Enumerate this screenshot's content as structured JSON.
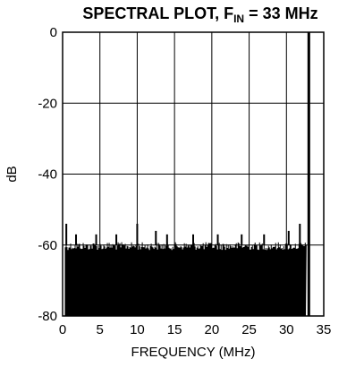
{
  "chart_data": {
    "type": "bar",
    "title": {
      "prefix": "SPECTRAL PLOT, F",
      "subscript": "IN",
      "suffix": " = 33 MHz"
    },
    "xlabel": "FREQUENCY (MHz)",
    "ylabel": "dB",
    "xlim": [
      0,
      35
    ],
    "ylim": [
      -80,
      0
    ],
    "xticks": [
      0,
      5,
      10,
      15,
      20,
      25,
      30,
      35
    ],
    "yticks": [
      0,
      -20,
      -40,
      -60,
      -80
    ],
    "grid": true,
    "noise_floor_db": -60,
    "noise_spur_peaks": [
      {
        "x": 0.5,
        "y": -54
      },
      {
        "x": 1.8,
        "y": -57
      },
      {
        "x": 4.5,
        "y": -57
      },
      {
        "x": 7.2,
        "y": -57
      },
      {
        "x": 10.0,
        "y": -54
      },
      {
        "x": 12.5,
        "y": -56
      },
      {
        "x": 14.0,
        "y": -57
      },
      {
        "x": 17.5,
        "y": -57
      },
      {
        "x": 20.8,
        "y": -57
      },
      {
        "x": 24.0,
        "y": -57
      },
      {
        "x": 27.0,
        "y": -57
      },
      {
        "x": 30.3,
        "y": -56
      },
      {
        "x": 31.8,
        "y": -54
      }
    ],
    "fundamental": {
      "x": 33.0,
      "y": 0
    }
  }
}
